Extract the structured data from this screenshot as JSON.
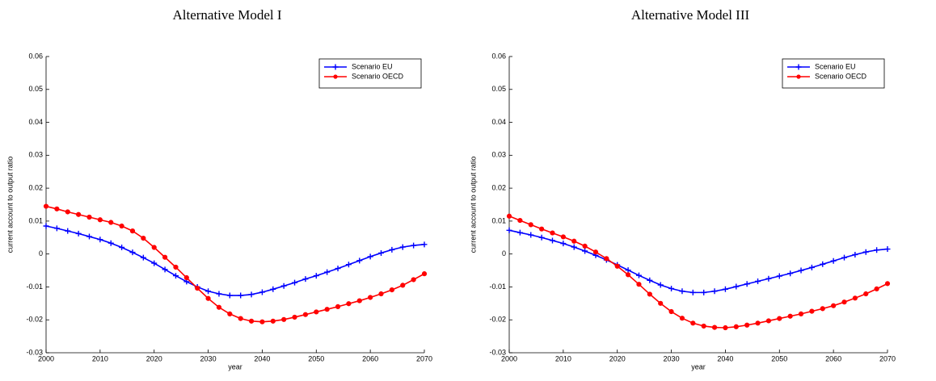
{
  "chart_data": [
    {
      "type": "line",
      "title": "Alternative Model I",
      "xlabel": "year",
      "ylabel": "current account to output ratio",
      "x": [
        2000,
        2002,
        2004,
        2006,
        2008,
        2010,
        2012,
        2014,
        2016,
        2018,
        2020,
        2022,
        2024,
        2026,
        2028,
        2030,
        2032,
        2034,
        2036,
        2038,
        2040,
        2042,
        2044,
        2046,
        2048,
        2050,
        2052,
        2054,
        2056,
        2058,
        2060,
        2062,
        2064,
        2066,
        2068,
        2070
      ],
      "series": [
        {
          "name": "Scenario EU",
          "color": "#0000ff",
          "marker": "+",
          "values": [
            0.0085,
            0.0078,
            0.007,
            0.0062,
            0.0053,
            0.0044,
            0.0033,
            0.002,
            0.0005,
            -0.0011,
            -0.0028,
            -0.0047,
            -0.0066,
            -0.0084,
            -0.01,
            -0.0113,
            -0.0121,
            -0.0126,
            -0.0126,
            -0.0123,
            -0.0116,
            -0.0107,
            -0.0097,
            -0.0087,
            -0.0076,
            -0.0066,
            -0.0055,
            -0.0044,
            -0.0032,
            -0.002,
            -0.0008,
            0.0003,
            0.0013,
            0.0021,
            0.0026,
            0.0029
          ]
        },
        {
          "name": "Scenario OECD",
          "color": "#ff0000",
          "marker": "o",
          "values": [
            0.0145,
            0.0137,
            0.0128,
            0.012,
            0.0112,
            0.0104,
            0.0096,
            0.0085,
            0.007,
            0.0048,
            0.002,
            -0.001,
            -0.004,
            -0.0072,
            -0.0104,
            -0.0135,
            -0.0162,
            -0.0182,
            -0.0196,
            -0.0204,
            -0.0206,
            -0.0204,
            -0.0199,
            -0.0192,
            -0.0184,
            -0.0176,
            -0.0168,
            -0.016,
            -0.0151,
            -0.0142,
            -0.0132,
            -0.0121,
            -0.0109,
            -0.0095,
            -0.0078,
            -0.006
          ]
        }
      ],
      "xlim": [
        2000,
        2070
      ],
      "xticks": [
        2000,
        2010,
        2020,
        2030,
        2040,
        2050,
        2060,
        2070
      ],
      "ylim": [
        -0.03,
        0.06
      ],
      "yticks": [
        -0.03,
        -0.02,
        -0.01,
        0,
        0.01,
        0.02,
        0.03,
        0.04,
        0.05,
        0.06
      ],
      "legend": "upper right"
    },
    {
      "type": "line",
      "title": "Alternative Model III",
      "xlabel": "year",
      "ylabel": "current account to output ratio",
      "x": [
        2000,
        2002,
        2004,
        2006,
        2008,
        2010,
        2012,
        2014,
        2016,
        2018,
        2020,
        2022,
        2024,
        2026,
        2028,
        2030,
        2032,
        2034,
        2036,
        2038,
        2040,
        2042,
        2044,
        2046,
        2048,
        2050,
        2052,
        2054,
        2056,
        2058,
        2060,
        2062,
        2064,
        2066,
        2068,
        2070
      ],
      "series": [
        {
          "name": "Scenario EU",
          "color": "#0000ff",
          "marker": "+",
          "values": [
            0.0072,
            0.0065,
            0.0058,
            0.005,
            0.0041,
            0.0032,
            0.0021,
            0.0009,
            -0.0004,
            -0.0018,
            -0.0033,
            -0.0049,
            -0.0065,
            -0.008,
            -0.0094,
            -0.0105,
            -0.0113,
            -0.0117,
            -0.0117,
            -0.0113,
            -0.0107,
            -0.0099,
            -0.0091,
            -0.0083,
            -0.0075,
            -0.0067,
            -0.0059,
            -0.005,
            -0.0041,
            -0.0031,
            -0.0021,
            -0.0011,
            -0.0002,
            0.0006,
            0.0012,
            0.0015
          ]
        },
        {
          "name": "Scenario OECD",
          "color": "#ff0000",
          "marker": "o",
          "values": [
            0.0115,
            0.0102,
            0.0089,
            0.0076,
            0.0064,
            0.0052,
            0.0039,
            0.0024,
            0.0006,
            -0.0014,
            -0.0037,
            -0.0063,
            -0.0092,
            -0.0122,
            -0.015,
            -0.0175,
            -0.0195,
            -0.021,
            -0.0219,
            -0.0223,
            -0.0224,
            -0.0221,
            -0.0216,
            -0.021,
            -0.0203,
            -0.0196,
            -0.0189,
            -0.0182,
            -0.0174,
            -0.0166,
            -0.0157,
            -0.0146,
            -0.0134,
            -0.0121,
            -0.0106,
            -0.009
          ]
        }
      ],
      "xlim": [
        2000,
        2070
      ],
      "xticks": [
        2000,
        2010,
        2020,
        2030,
        2040,
        2050,
        2060,
        2070
      ],
      "ylim": [
        -0.03,
        0.06
      ],
      "yticks": [
        -0.03,
        -0.02,
        -0.01,
        0,
        0.01,
        0.02,
        0.03,
        0.04,
        0.05,
        0.06
      ],
      "legend": "upper right"
    }
  ]
}
